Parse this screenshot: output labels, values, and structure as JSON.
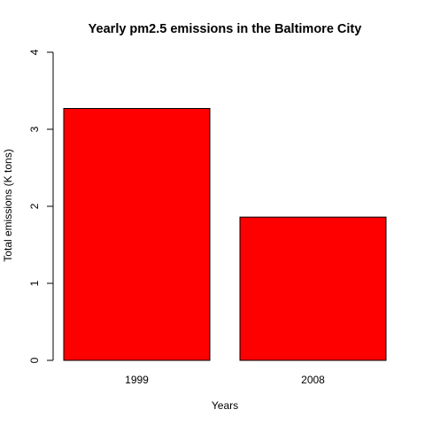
{
  "chart_data": {
    "type": "bar",
    "title": "Yearly pm2.5 emissions in the Baltimore City",
    "xlabel": "Years",
    "ylabel": "Total emissions (K tons)",
    "categories": [
      "1999",
      "2008"
    ],
    "values": [
      3.27,
      1.86
    ],
    "ylim": [
      0,
      4
    ],
    "yticks": [
      "0",
      "1",
      "2",
      "3",
      "4"
    ],
    "bar_color": "#ff0000",
    "bar_border_color": "#000000",
    "grid": false,
    "legend": "none"
  }
}
